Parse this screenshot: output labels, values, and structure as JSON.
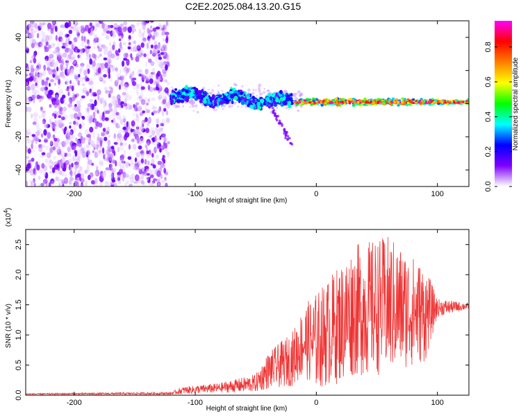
{
  "title": "C2E2.2025.084.13.20.G15",
  "chart_data": [
    {
      "type": "heatmap",
      "xlabel": "Height of straight line (km)",
      "ylabel": "Frequency (Hz)",
      "xlim": [
        -240,
        126
      ],
      "ylim": [
        -50,
        50
      ],
      "xticks": [
        -200,
        -100,
        0,
        100
      ],
      "yticks": [
        -40,
        -20,
        0,
        20,
        40
      ],
      "colorbar": {
        "label": "Normalized spectral amplitude",
        "range": [
          0,
          0.95
        ],
        "ticks": [
          0.0,
          0.2,
          0.4,
          0.6,
          0.8
        ],
        "tick_labels": [
          "0.0",
          "0.2",
          "0.4",
          "0.6",
          "0.8"
        ],
        "colors": [
          "#ffffff",
          "#7f00ff",
          "#0000ff",
          "#00ffff",
          "#00ff00",
          "#ffff00",
          "#ff7f00",
          "#ff0000",
          "#ff00ff"
        ]
      },
      "regions": [
        {
          "description": "noise",
          "x": [
            -240,
            -122
          ],
          "freq": [
            -50,
            50
          ],
          "amplitude": [
            0.02,
            0.15
          ]
        },
        {
          "description": "signal-onset",
          "x": [
            -120,
            -20
          ],
          "freq_center": [
            5,
            0
          ],
          "amplitude": [
            0.1,
            0.35
          ]
        },
        {
          "description": "tracking",
          "x": [
            -18,
            126
          ],
          "freq_center": [
            1,
            1
          ],
          "amplitude": [
            0.5,
            0.9
          ]
        }
      ]
    },
    {
      "type": "line",
      "xlabel": "Height of straight line (km)",
      "ylabel": "SNR (10 * v/v)",
      "y_scale_label": "(x10",
      "y_scale_exp": "4",
      "y_scale_close": ")",
      "xlim": [
        -240,
        126
      ],
      "ylim": [
        0,
        2.75
      ],
      "xticks": [
        -200,
        -100,
        0,
        100
      ],
      "yticks": [
        0.0,
        0.5,
        1.0,
        1.5,
        2.0,
        2.5
      ],
      "ytick_labels": [
        "0.0",
        "0.5",
        "1.0",
        "1.5",
        "2.0",
        "2.5"
      ],
      "series_color": "#ee3333",
      "envelope": [
        {
          "x": -240,
          "y": 0.02,
          "spread": 0.01
        },
        {
          "x": -120,
          "y": 0.03,
          "spread": 0.02
        },
        {
          "x": -110,
          "y": 0.08,
          "spread": 0.06
        },
        {
          "x": -80,
          "y": 0.12,
          "spread": 0.08
        },
        {
          "x": -50,
          "y": 0.2,
          "spread": 0.15
        },
        {
          "x": -40,
          "y": 0.4,
          "spread": 0.3
        },
        {
          "x": -20,
          "y": 0.6,
          "spread": 0.45
        },
        {
          "x": -10,
          "y": 0.9,
          "spread": 0.6
        },
        {
          "x": 0,
          "y": 0.9,
          "spread": 0.8
        },
        {
          "x": 20,
          "y": 1.2,
          "spread": 1.0
        },
        {
          "x": 30,
          "y": 1.4,
          "spread": 1.1
        },
        {
          "x": 60,
          "y": 1.5,
          "spread": 1.15
        },
        {
          "x": 90,
          "y": 1.35,
          "spread": 0.8
        },
        {
          "x": 100,
          "y": 1.45,
          "spread": 0.15
        },
        {
          "x": 126,
          "y": 1.48,
          "spread": 0.05
        }
      ]
    }
  ]
}
